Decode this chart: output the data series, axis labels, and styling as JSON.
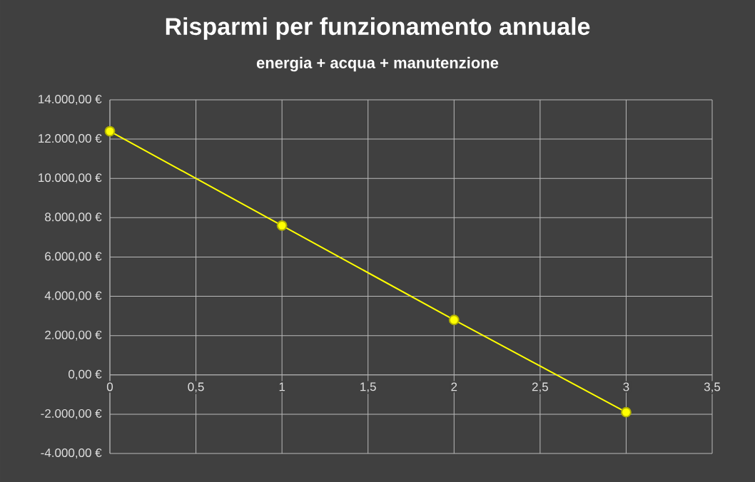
{
  "chart_data": {
    "type": "line",
    "title": "Risparmi  per funzionamento  annuale",
    "subtitle": "energia + acqua + manutenzione",
    "x": [
      0,
      1,
      2,
      3
    ],
    "series": [
      {
        "color": "#ffff00",
        "values": [
          12400,
          7600,
          2800,
          -1900
        ]
      }
    ],
    "xlim": [
      0,
      3.5
    ],
    "xticks": [
      0,
      {
        "value": 0.5,
        "label": "0,5"
      },
      1,
      {
        "value": 1.5,
        "label": "1,5"
      },
      2,
      {
        "value": 2.5,
        "label": "2,5"
      },
      3,
      {
        "value": 3.5,
        "label": "3,5"
      }
    ],
    "ylim": [
      -4000,
      14000
    ],
    "yticks": [
      {
        "value": -4000,
        "label": "-4.000,00 €"
      },
      {
        "value": -2000,
        "label": "-2.000,00 €"
      },
      {
        "value": 0,
        "label": "0,00 €"
      },
      {
        "value": 2000,
        "label": "2.000,00 €"
      },
      {
        "value": 4000,
        "label": "4.000,00 €"
      },
      {
        "value": 6000,
        "label": "6.000,00 €"
      },
      {
        "value": 8000,
        "label": "8.000,00 €"
      },
      {
        "value": 10000,
        "label": "10.000,00 €"
      },
      {
        "value": 12000,
        "label": "12.000,00 €"
      },
      {
        "value": 14000,
        "label": "14.000,00 €"
      }
    ],
    "grid": true,
    "marker": "circle",
    "line_style": "solid"
  }
}
